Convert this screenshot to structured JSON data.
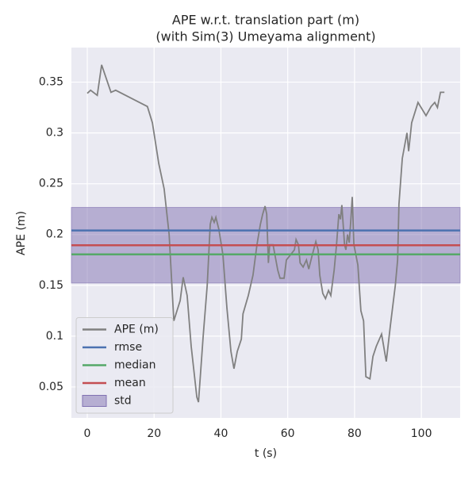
{
  "chart_data": {
    "type": "line",
    "title": "APE w.r.t. translation part (m)",
    "subtitle": "(with Sim(3) Umeyama alignment)",
    "xlabel": "t (s)",
    "ylabel": "APE (m)",
    "xlim": [
      -4.75,
      111.6
    ],
    "ylim": [
      0.0195,
      0.384
    ],
    "xticks": [
      0,
      20,
      40,
      60,
      80,
      100
    ],
    "yticks": [
      0.05,
      0.1,
      0.15,
      0.2,
      0.25,
      0.3,
      0.35
    ],
    "grid": true,
    "legend": "lower left",
    "series": [
      {
        "name": "APE (m)",
        "color": "#808080",
        "x": [
          0,
          1,
          3,
          4.3,
          7.1,
          8.5,
          18,
          19.5,
          21.4,
          23,
          24.5,
          25.9,
          27.8,
          28.7,
          29.9,
          31.1,
          32.8,
          33.3,
          34.7,
          35.9,
          36.8,
          37.3,
          38,
          38.5,
          39.4,
          40.6,
          41.8,
          43,
          43.9,
          44.9,
          46.1,
          46.6,
          48.2,
          49.6,
          50.8,
          51.8,
          52.5,
          53.2,
          53.7,
          54.2,
          54.6,
          55.6,
          57,
          57.7,
          58.9,
          59.6,
          60.8,
          62,
          62.5,
          63.2,
          63.7,
          64.6,
          65.6,
          66.3,
          67.2,
          68.4,
          69.1,
          69.6,
          70.5,
          71.3,
          72.2,
          72.9,
          73.9,
          74.6,
          75.3,
          75.8,
          76.2,
          77,
          77.4,
          77.9,
          78.4,
          78.9,
          79.3,
          79.8,
          81,
          81.9,
          82.7,
          83.4,
          84.6,
          85.5,
          86.5,
          88.1,
          89.5,
          90.7,
          92.2,
          92.9,
          93.3,
          94.3,
          95.7,
          96.2,
          97.1,
          99,
          101.4,
          102.9,
          104,
          104.8,
          105.7,
          106.9
        ],
        "values": [
          0.339,
          0.342,
          0.337,
          0.367,
          0.34,
          0.342,
          0.326,
          0.31,
          0.27,
          0.245,
          0.2,
          0.115,
          0.135,
          0.158,
          0.14,
          0.09,
          0.04,
          0.035,
          0.1,
          0.15,
          0.21,
          0.217,
          0.212,
          0.217,
          0.205,
          0.18,
          0.128,
          0.085,
          0.068,
          0.085,
          0.097,
          0.122,
          0.14,
          0.16,
          0.19,
          0.21,
          0.22,
          0.228,
          0.22,
          0.172,
          0.19,
          0.19,
          0.165,
          0.157,
          0.157,
          0.175,
          0.18,
          0.185,
          0.195,
          0.19,
          0.172,
          0.168,
          0.175,
          0.166,
          0.178,
          0.193,
          0.185,
          0.16,
          0.142,
          0.137,
          0.145,
          0.14,
          0.165,
          0.19,
          0.22,
          0.215,
          0.229,
          0.19,
          0.185,
          0.2,
          0.192,
          0.215,
          0.237,
          0.19,
          0.17,
          0.125,
          0.115,
          0.06,
          0.058,
          0.08,
          0.09,
          0.102,
          0.075,
          0.11,
          0.15,
          0.175,
          0.23,
          0.275,
          0.3,
          0.282,
          0.31,
          0.33,
          0.317,
          0.326,
          0.33,
          0.325,
          0.34,
          0.34
        ]
      }
    ],
    "stats": [
      {
        "name": "rmse",
        "color": "#4c72b0",
        "value": 0.204
      },
      {
        "name": "median",
        "color": "#55a868",
        "value": 0.1805
      },
      {
        "name": "mean",
        "color": "#c44e52",
        "value": 0.1895
      },
      {
        "name": "std",
        "color": "#8172b2",
        "value": 0.0372
      }
    ]
  }
}
